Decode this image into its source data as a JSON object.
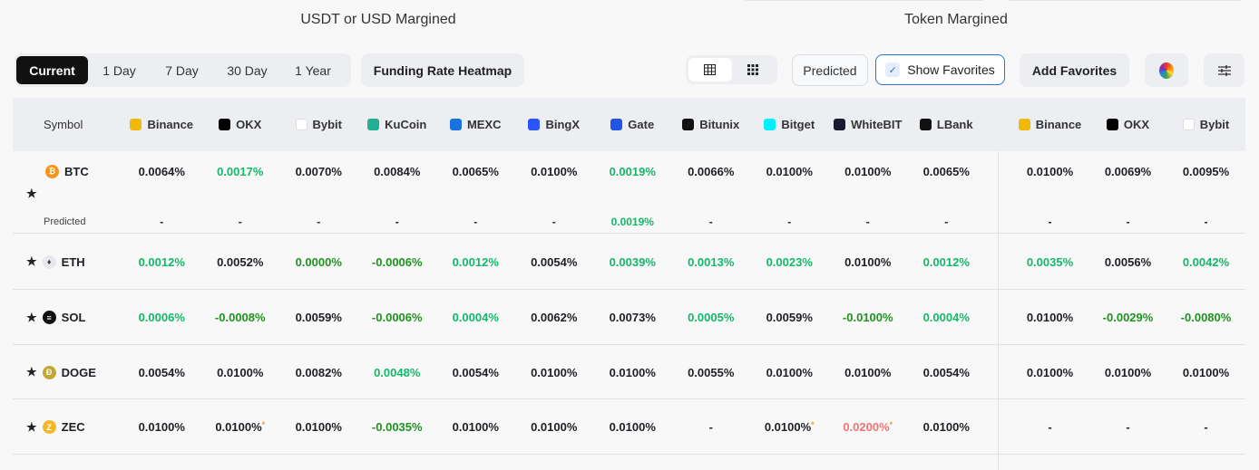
{
  "sections": {
    "usdt": "USDT or USD Margined",
    "token": "Token Margined"
  },
  "periods": [
    "Current",
    "1 Day",
    "7 Day",
    "30 Day",
    "1 Year"
  ],
  "active_period": "Current",
  "heatmap_label": "Funding Rate Heatmap",
  "predicted_label": "Predicted",
  "show_favorites_label": "Show Favorites",
  "show_favorites_checked": true,
  "add_favorites_label": "Add Favorites",
  "colors": {
    "positive_low": "#14b86a",
    "negative": "#1e941e",
    "high": "#f07474",
    "mark": "#f0a020"
  },
  "table": {
    "symbol_header": "Symbol",
    "exchanges": [
      {
        "name": "Binance",
        "color": "#f0b90b"
      },
      {
        "name": "OKX",
        "color": "#000000"
      },
      {
        "name": "Bybit",
        "color": "#ffffff"
      },
      {
        "name": "KuCoin",
        "color": "#23af91"
      },
      {
        "name": "MEXC",
        "color": "#1972e2"
      },
      {
        "name": "BingX",
        "color": "#2a54ff"
      },
      {
        "name": "Gate",
        "color": "#2354e6"
      },
      {
        "name": "Bitunix",
        "color": "#111111"
      },
      {
        "name": "Bitget",
        "color": "#00f0ff"
      },
      {
        "name": "WhiteBIT",
        "color": "#1b1b2f"
      },
      {
        "name": "LBank",
        "color": "#111111"
      }
    ],
    "token_exchanges": [
      {
        "name": "Binance",
        "color": "#f0b90b"
      },
      {
        "name": "OKX",
        "color": "#000000"
      },
      {
        "name": "Bybit",
        "color": "#ffffff"
      }
    ],
    "predicted_row_label": "Predicted",
    "rows": [
      {
        "symbol": "BTC",
        "coin_color": "#f7931a",
        "coin_glyph": "₿",
        "favorite": true,
        "values": [
          [
            "0.0064%",
            ""
          ],
          [
            "0.0017%",
            "g"
          ],
          [
            "0.0070%",
            ""
          ],
          [
            "0.0084%",
            ""
          ],
          [
            "0.0065%",
            ""
          ],
          [
            "0.0100%",
            ""
          ],
          [
            "0.0019%",
            "g"
          ],
          [
            "0.0066%",
            ""
          ],
          [
            "0.0100%",
            ""
          ],
          [
            "0.0100%",
            ""
          ],
          [
            "0.0065%",
            ""
          ]
        ],
        "token_values": [
          [
            "0.0100%",
            ""
          ],
          [
            "0.0069%",
            ""
          ],
          [
            "0.0095%",
            ""
          ]
        ],
        "predicted": [
          [
            "-",
            ""
          ],
          [
            "-",
            ""
          ],
          [
            "-",
            ""
          ],
          [
            "-",
            ""
          ],
          [
            "-",
            ""
          ],
          [
            "-",
            ""
          ],
          [
            "0.0019%",
            "g"
          ],
          [
            "-",
            ""
          ],
          [
            "-",
            ""
          ],
          [
            "-",
            ""
          ],
          [
            "-",
            ""
          ]
        ],
        "token_predicted": [
          [
            "-",
            ""
          ],
          [
            "-",
            ""
          ],
          [
            "-",
            ""
          ]
        ]
      },
      {
        "symbol": "ETH",
        "coin_color": "#e6e8ee",
        "coin_glyph": "♦",
        "favorite": true,
        "values": [
          [
            "0.0012%",
            "g"
          ],
          [
            "0.0052%",
            ""
          ],
          [
            "0.0000%",
            "d"
          ],
          [
            "-0.0006%",
            "d"
          ],
          [
            "0.0012%",
            "g"
          ],
          [
            "0.0054%",
            ""
          ],
          [
            "0.0039%",
            "g"
          ],
          [
            "0.0013%",
            "g"
          ],
          [
            "0.0023%",
            "g"
          ],
          [
            "0.0100%",
            ""
          ],
          [
            "0.0012%",
            "g"
          ]
        ],
        "token_values": [
          [
            "0.0035%",
            "g"
          ],
          [
            "0.0056%",
            ""
          ],
          [
            "0.0042%",
            "g"
          ]
        ]
      },
      {
        "symbol": "SOL",
        "coin_color": "#111111",
        "coin_glyph": "≡",
        "favorite": true,
        "values": [
          [
            "0.0006%",
            "g"
          ],
          [
            "-0.0008%",
            "d"
          ],
          [
            "0.0059%",
            ""
          ],
          [
            "-0.0006%",
            "d"
          ],
          [
            "0.0004%",
            "g"
          ],
          [
            "0.0062%",
            ""
          ],
          [
            "0.0073%",
            ""
          ],
          [
            "0.0005%",
            "g"
          ],
          [
            "0.0059%",
            ""
          ],
          [
            "-0.0100%",
            "d"
          ],
          [
            "0.0004%",
            "g"
          ]
        ],
        "token_values": [
          [
            "0.0100%",
            ""
          ],
          [
            "-0.0029%",
            "d"
          ],
          [
            "-0.0080%",
            "d"
          ]
        ]
      },
      {
        "symbol": "DOGE",
        "coin_color": "#c2a633",
        "coin_glyph": "Ð",
        "favorite": true,
        "values": [
          [
            "0.0054%",
            ""
          ],
          [
            "0.0100%",
            ""
          ],
          [
            "0.0082%",
            ""
          ],
          [
            "0.0048%",
            "g"
          ],
          [
            "0.0054%",
            ""
          ],
          [
            "0.0100%",
            ""
          ],
          [
            "0.0100%",
            ""
          ],
          [
            "0.0055%",
            ""
          ],
          [
            "0.0100%",
            ""
          ],
          [
            "0.0100%",
            ""
          ],
          [
            "0.0054%",
            ""
          ]
        ],
        "token_values": [
          [
            "0.0100%",
            ""
          ],
          [
            "0.0100%",
            ""
          ],
          [
            "0.0100%",
            ""
          ]
        ]
      },
      {
        "symbol": "ZEC",
        "coin_color": "#f4b728",
        "coin_glyph": "Z",
        "favorite": true,
        "values": [
          [
            "0.0100%",
            ""
          ],
          [
            "0.0100%",
            "",
            "*"
          ],
          [
            "0.0100%",
            ""
          ],
          [
            "-0.0035%",
            "d"
          ],
          [
            "0.0100%",
            ""
          ],
          [
            "0.0100%",
            ""
          ],
          [
            "0.0100%",
            ""
          ],
          [
            "-",
            ""
          ],
          [
            "0.0100%",
            "",
            "*"
          ],
          [
            "0.0200%",
            "r",
            "*"
          ],
          [
            "0.0100%",
            ""
          ]
        ],
        "token_values": [
          [
            "-",
            ""
          ],
          [
            "-",
            ""
          ],
          [
            "-",
            ""
          ]
        ]
      }
    ]
  }
}
